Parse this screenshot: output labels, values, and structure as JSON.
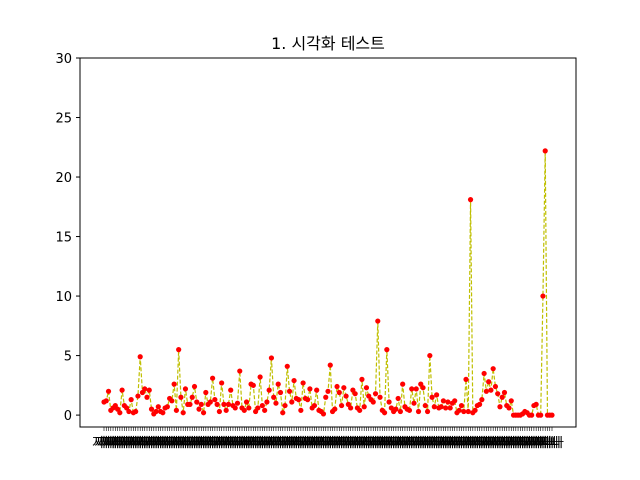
{
  "chart_data": {
    "type": "line",
    "title": "1. 시각화 테스트",
    "xlabel": "",
    "ylabel": "",
    "ylim": [
      -1,
      30
    ],
    "yticks": [
      0,
      5,
      10,
      15,
      20,
      25,
      30
    ],
    "x_tick_label_sample": "지나",
    "grid": false,
    "line_color": "#bfbf00",
    "line_style": "dashed",
    "marker_color": "#ff0000",
    "series": [
      {
        "values": [
          1.1,
          1.2,
          2.0,
          0.4,
          0.6,
          0.8,
          0.5,
          0.2,
          2.1,
          0.8,
          0.6,
          0.3,
          1.3,
          0.2,
          0.3,
          1.6,
          4.9,
          1.9,
          2.2,
          1.5,
          2.1,
          0.5,
          0.1,
          0.3,
          0.7,
          0.3,
          0.2,
          0.6,
          0.7,
          1.4,
          1.2,
          2.6,
          0.4,
          5.5,
          1.5,
          0.2,
          2.2,
          0.9,
          0.9,
          1.5,
          2.4,
          1.1,
          0.5,
          0.9,
          0.2,
          1.9,
          0.9,
          1.1,
          3.1,
          1.3,
          0.9,
          0.3,
          2.7,
          0.9,
          0.4,
          0.9,
          2.1,
          0.8,
          0.6,
          1.0,
          3.7,
          0.6,
          0.4,
          1.1,
          0.6,
          2.6,
          2.5,
          0.3,
          0.6,
          3.2,
          0.8,
          0.4,
          1.1,
          2.1,
          4.8,
          1.5,
          1.0,
          2.6,
          1.9,
          0.2,
          0.8,
          4.1,
          2.0,
          1.1,
          2.9,
          1.4,
          1.3,
          0.4,
          2.7,
          1.4,
          1.3,
          2.2,
          0.6,
          0.8,
          2.1,
          0.4,
          0.3,
          0.1,
          1.5,
          2.0,
          4.2,
          0.3,
          0.5,
          2.4,
          1.9,
          0.8,
          2.3,
          1.6,
          0.9,
          0.6,
          2.1,
          1.8,
          0.6,
          0.4,
          3.0,
          0.7,
          2.3,
          1.6,
          1.3,
          1.1,
          1.8,
          7.9,
          1.5,
          0.4,
          0.2,
          5.5,
          1.1,
          0.6,
          0.3,
          0.5,
          1.4,
          0.3,
          2.6,
          0.7,
          0.5,
          0.4,
          2.2,
          1.0,
          2.2,
          0.3,
          2.6,
          2.3,
          0.8,
          0.3,
          5.0,
          1.5,
          0.7,
          1.7,
          0.6,
          0.7,
          1.2,
          0.6,
          1.1,
          0.6,
          1.0,
          1.2,
          0.2,
          0.4,
          0.8,
          0.3,
          3.0,
          0.3,
          18.1,
          0.2,
          0.4,
          0.8,
          0.9,
          1.3,
          3.5,
          2.0,
          2.8,
          2.1,
          3.9,
          2.4,
          1.8,
          0.7,
          1.5,
          1.9,
          0.8,
          0.6,
          1.2,
          0.0,
          0.0,
          0.0,
          0.0,
          0.1,
          0.3,
          0.2,
          0.0,
          0.0,
          0.8,
          0.9,
          0.0,
          0.0,
          10.0,
          22.2,
          0.0,
          0.0,
          0.0
        ]
      }
    ]
  }
}
